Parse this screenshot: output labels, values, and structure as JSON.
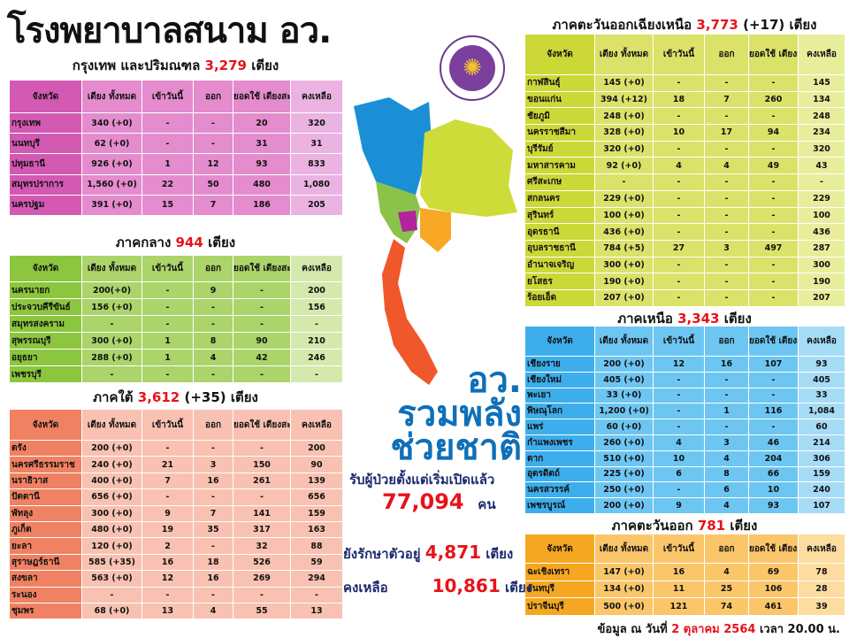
{
  "title": "โรงพยาบาลสนาม อว.",
  "columns": [
    "จังหวัด",
    "เตียง ทั้งหมด",
    "เข้าวันนี้",
    "ออก",
    "ยอดใช้ เตียงสะสม",
    "คงเหลือ"
  ],
  "bed_unit": "เตียง",
  "regions": {
    "bangkok": {
      "name": "กรุงเทพ และปริมณฑล",
      "total": "3,279",
      "delta": "",
      "colors": [
        "#d359b3",
        "#e48cce",
        "#eab3e1"
      ],
      "rows": [
        [
          "กรุงเทพ",
          "340 (+0)",
          "-",
          "-",
          "20",
          "320"
        ],
        [
          "นนทบุรี",
          "62 (+0)",
          "-",
          "-",
          "31",
          "31"
        ],
        [
          "ปทุมธานี",
          "926 (+0)",
          "1",
          "12",
          "93",
          "833"
        ],
        [
          "สมุทรปราการ",
          "1,560 (+0)",
          "22",
          "50",
          "480",
          "1,080"
        ],
        [
          "นครปฐม",
          "391 (+0)",
          "15",
          "7",
          "186",
          "205"
        ]
      ]
    },
    "central": {
      "name": "ภาคกลาง",
      "total": "944",
      "delta": "",
      "colors": [
        "#8cc63e",
        "#abd46a",
        "#d4e9ab"
      ],
      "rows": [
        [
          "นครนายก",
          "200(+0)",
          "-",
          "9",
          "-",
          "200"
        ],
        [
          "ประจวบคีรีขันธ์",
          "156 (+0)",
          "-",
          "-",
          "-",
          "156"
        ],
        [
          "สมุทรสงคราม",
          "-",
          "-",
          "-",
          "-",
          "-"
        ],
        [
          "สุพรรณบุรี",
          "300 (+0)",
          "1",
          "8",
          "90",
          "210"
        ],
        [
          "อยุธยา",
          "288 (+0)",
          "1",
          "4",
          "42",
          "246"
        ],
        [
          "เพชรบุรี",
          "-",
          "-",
          "-",
          "-",
          "-"
        ]
      ]
    },
    "south": {
      "name": "ภาคใต้",
      "total": "3,612",
      "delta": "(+35)",
      "colors": [
        "#f08162",
        "#f8c1b1",
        "#f8c1b1"
      ],
      "rows": [
        [
          "ตรัง",
          "200 (+0)",
          "-",
          "-",
          "-",
          "200"
        ],
        [
          "นครศรีธรรมราช",
          "240 (+0)",
          "21",
          "3",
          "150",
          "90"
        ],
        [
          "นราธิวาส",
          "400 (+0)",
          "7",
          "16",
          "261",
          "139"
        ],
        [
          "ปัตตานี",
          "656 (+0)",
          "-",
          "-",
          "-",
          "656"
        ],
        [
          "พัทลุง",
          "300 (+0)",
          "9",
          "7",
          "141",
          "159"
        ],
        [
          "ภูเก็ต",
          "480 (+0)",
          "19",
          "35",
          "317",
          "163"
        ],
        [
          "ยะลา",
          "120 (+0)",
          "2",
          "-",
          "32",
          "88"
        ],
        [
          "สุราษฎร์ธานี",
          "585 (+35)",
          "16",
          "18",
          "526",
          "59"
        ],
        [
          "สงขลา",
          "563 (+0)",
          "12",
          "16",
          "269",
          "294"
        ],
        [
          "ระนอง",
          "-",
          "-",
          "-",
          "-",
          "-"
        ],
        [
          "ชุมพร",
          "68 (+0)",
          "13",
          "4",
          "55",
          "13"
        ]
      ]
    },
    "northeast": {
      "name": "ภาคตะวันออกเฉียงเหนือ",
      "total": "3,773",
      "delta": "(+17)",
      "colors": [
        "#ccd838",
        "#dbe26a",
        "#e8ed9c"
      ],
      "rows": [
        [
          "กาฬสินธุ์",
          "145 (+0)",
          "-",
          "-",
          "-",
          "145"
        ],
        [
          "ขอนแก่น",
          "394 (+12)",
          "18",
          "7",
          "260",
          "134"
        ],
        [
          "ชัยภูมิ",
          "248 (+0)",
          "-",
          "-",
          "-",
          "248"
        ],
        [
          "นครราชสีมา",
          "328 (+0)",
          "10",
          "17",
          "94",
          "234"
        ],
        [
          "บุรีรัมย์",
          "320 (+0)",
          "-",
          "-",
          "-",
          "320"
        ],
        [
          "มหาสารคาม",
          "92 (+0)",
          "4",
          "4",
          "49",
          "43"
        ],
        [
          "ศรีสะเกษ",
          "-",
          "-",
          "-",
          "-",
          "-"
        ],
        [
          "สกลนคร",
          "229 (+0)",
          "-",
          "-",
          "-",
          "229"
        ],
        [
          "สุรินทร์",
          "100 (+0)",
          "-",
          "-",
          "-",
          "100"
        ],
        [
          "อุดรธานี",
          "436 (+0)",
          "-",
          "-",
          "-",
          "436"
        ],
        [
          "อุบลราชธานี",
          "784 (+5)",
          "27",
          "3",
          "497",
          "287"
        ],
        [
          "อำนาจเจริญ",
          "300 (+0)",
          "-",
          "-",
          "-",
          "300"
        ],
        [
          "ยโสธร",
          "190 (+0)",
          "-",
          "-",
          "-",
          "190"
        ],
        [
          "ร้อยเอ็ด",
          "207 (+0)",
          "-",
          "-",
          "-",
          "207"
        ]
      ]
    },
    "north": {
      "name": "ภาคเหนือ",
      "total": "3,343",
      "delta": "",
      "colors": [
        "#3daeec",
        "#6dc6f2",
        "#a6dbf6"
      ],
      "rows": [
        [
          "เชียงราย",
          "200 (+0)",
          "12",
          "16",
          "107",
          "93"
        ],
        [
          "เชียงใหม่",
          "405 (+0)",
          "-",
          "-",
          "-",
          "405"
        ],
        [
          "พะเยา",
          "33 (+0)",
          "-",
          "-",
          "-",
          "33"
        ],
        [
          "พิษณุโลก",
          "1,200 (+0)",
          "-",
          "1",
          "116",
          "1,084"
        ],
        [
          "แพร่",
          "60 (+0)",
          "-",
          "-",
          "-",
          "60"
        ],
        [
          "กำแพงเพชร",
          "260 (+0)",
          "4",
          "3",
          "46",
          "214"
        ],
        [
          "ตาก",
          "510 (+0)",
          "10",
          "4",
          "204",
          "306"
        ],
        [
          "อุตรดิตถ์",
          "225 (+0)",
          "6",
          "8",
          "66",
          "159"
        ],
        [
          "นครสวรรค์",
          "250 (+0)",
          "-",
          "6",
          "10",
          "240"
        ],
        [
          "เพชรบูรณ์",
          "200 (+0)",
          "9",
          "4",
          "93",
          "107"
        ]
      ]
    },
    "east": {
      "name": "ภาคตะวันออก",
      "total": "781",
      "delta": "",
      "colors": [
        "#f6a722",
        "#fbc66a",
        "#fcdc9f"
      ],
      "rows": [
        [
          "ฉะเชิงเทรา",
          "147 (+0)",
          "16",
          "4",
          "69",
          "78"
        ],
        [
          "จันทบุรี",
          "134 (+0)",
          "11",
          "25",
          "106",
          "28"
        ],
        [
          "ปราจีนบุรี",
          "500 (+0)",
          "121",
          "74",
          "461",
          "39"
        ]
      ]
    }
  },
  "slogan": {
    "line1": "อว.",
    "line2": "รวมพลัง",
    "line3": "ช่วยชาติ"
  },
  "summary": {
    "admitted_label": "รับผู้ป่วยตั้งแต่เริ่มเปิดแล้ว",
    "admitted": "77,094",
    "admitted_unit": "คน",
    "treating_label": "ยังรักษาตัวอยู่",
    "treating": "4,871",
    "remaining_label": "คงเหลือ",
    "remaining": "10,861"
  },
  "footer": {
    "prefix": "ข้อมูล ณ วันที่",
    "date": "2 ตุลาคม  2564",
    "time": "เวลา  20.00 น."
  }
}
